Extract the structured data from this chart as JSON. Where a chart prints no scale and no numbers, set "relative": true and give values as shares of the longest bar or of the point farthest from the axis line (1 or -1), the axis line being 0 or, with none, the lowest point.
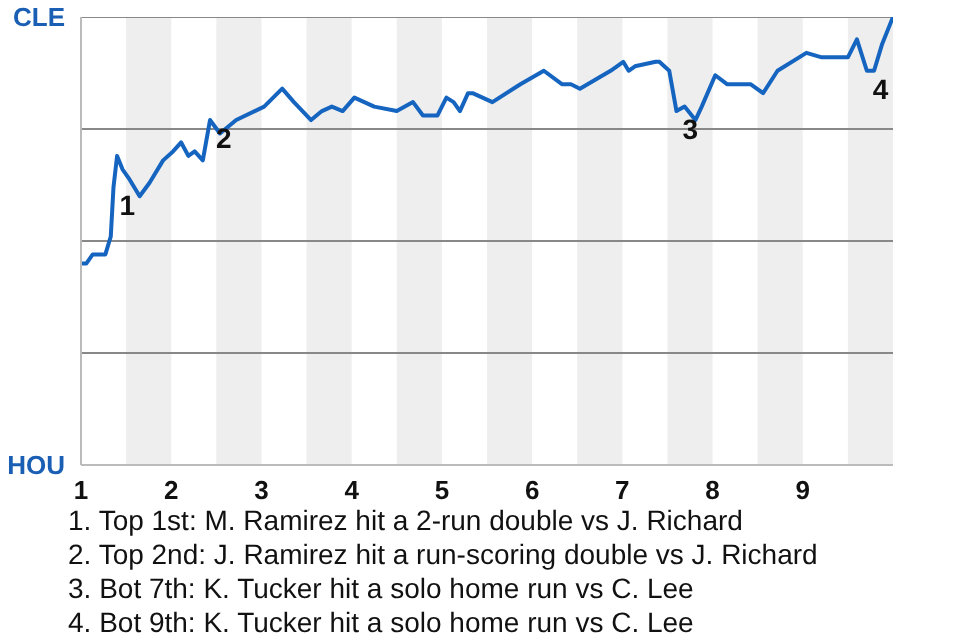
{
  "chart_data": {
    "type": "line",
    "relative": true,
    "x": [
      1.0,
      1.06,
      1.13,
      1.27,
      1.33,
      1.36,
      1.4,
      1.46,
      1.53,
      1.65,
      1.76,
      1.91,
      2.02,
      2.11,
      2.19,
      2.26,
      2.35,
      2.43,
      2.54,
      2.72,
      3.03,
      3.23,
      3.36,
      3.55,
      3.67,
      3.78,
      3.9,
      4.03,
      4.25,
      4.5,
      4.68,
      4.79,
      4.95,
      5.05,
      5.13,
      5.2,
      5.29,
      5.34,
      5.56,
      5.87,
      6.13,
      6.33,
      6.43,
      6.53,
      6.87,
      7.01,
      7.07,
      7.14,
      7.37,
      7.41,
      7.52,
      7.6,
      7.69,
      7.81,
      7.88,
      8.03,
      8.16,
      8.29,
      8.42,
      8.56,
      8.72,
      9.04,
      9.21,
      9.5,
      9.6,
      9.71,
      9.79,
      9.88,
      10.0
    ],
    "series": [
      {
        "color": "#1565c0",
        "values": [
          0.45,
          0.45,
          0.47,
          0.47,
          0.51,
          0.62,
          0.69,
          0.66,
          0.64,
          0.6,
          0.63,
          0.68,
          0.7,
          0.72,
          0.69,
          0.7,
          0.68,
          0.77,
          0.74,
          0.77,
          0.8,
          0.84,
          0.81,
          0.77,
          0.79,
          0.8,
          0.79,
          0.82,
          0.8,
          0.79,
          0.81,
          0.78,
          0.78,
          0.82,
          0.81,
          0.79,
          0.83,
          0.83,
          0.81,
          0.85,
          0.88,
          0.85,
          0.85,
          0.84,
          0.88,
          0.9,
          0.88,
          0.89,
          0.9,
          0.9,
          0.88,
          0.79,
          0.8,
          0.77,
          0.8,
          0.87,
          0.85,
          0.85,
          0.85,
          0.83,
          0.88,
          0.92,
          0.91,
          0.91,
          0.95,
          0.88,
          0.88,
          0.94,
          1.0
        ]
      }
    ],
    "xlim": [
      1,
      10
    ],
    "xticks": [
      1,
      2,
      3,
      4,
      5,
      6,
      7,
      8,
      9
    ],
    "marker": "none",
    "line_style": "solid",
    "ref_lines": [
      {
        "axis": "y",
        "value": 0.25,
        "color": "#888888"
      },
      {
        "axis": "y",
        "value": 0.5,
        "color": "#888888"
      },
      {
        "axis": "y",
        "value": 0.75,
        "color": "#888888"
      },
      {
        "axis": "y",
        "value": 1,
        "color": "#888888"
      }
    ],
    "bands": [
      {
        "axis": "x",
        "from": 1.5,
        "to": 2,
        "color": "#eeeeee"
      },
      {
        "axis": "x",
        "from": 2.5,
        "to": 3,
        "color": "#eeeeee"
      },
      {
        "axis": "x",
        "from": 3.5,
        "to": 4,
        "color": "#eeeeee"
      },
      {
        "axis": "x",
        "from": 4.5,
        "to": 5,
        "color": "#eeeeee"
      },
      {
        "axis": "x",
        "from": 5.5,
        "to": 6,
        "color": "#eeeeee"
      },
      {
        "axis": "x",
        "from": 6.5,
        "to": 7,
        "color": "#eeeeee"
      },
      {
        "axis": "x",
        "from": 7.5,
        "to": 8,
        "color": "#eeeeee"
      },
      {
        "axis": "x",
        "from": 8.5,
        "to": 9,
        "color": "#eeeeee"
      },
      {
        "axis": "x",
        "from": 9.5,
        "to": 10,
        "color": "#eeeeee"
      }
    ],
    "annotations": [
      "CLE",
      "HOU",
      {
        "text": "1",
        "x": 1.36,
        "y": 0.62
      },
      {
        "text": "2",
        "x": 2.43,
        "y": 0.77
      },
      {
        "text": "3",
        "x": 7.6,
        "y": 0.79
      },
      {
        "text": "4",
        "x": 9.71,
        "y": 0.88
      },
      "1. Top 1st: M. Ramirez hit a 2-run double vs J. Richard",
      "2. Top 2nd: J. Ramirez hit a run-scoring double vs J. Richard",
      "3. Bot 7th: K. Tucker hit a solo home run vs C. Lee",
      "4. Bot 9th: K. Tucker hit a solo home run vs C. Lee"
    ]
  }
}
